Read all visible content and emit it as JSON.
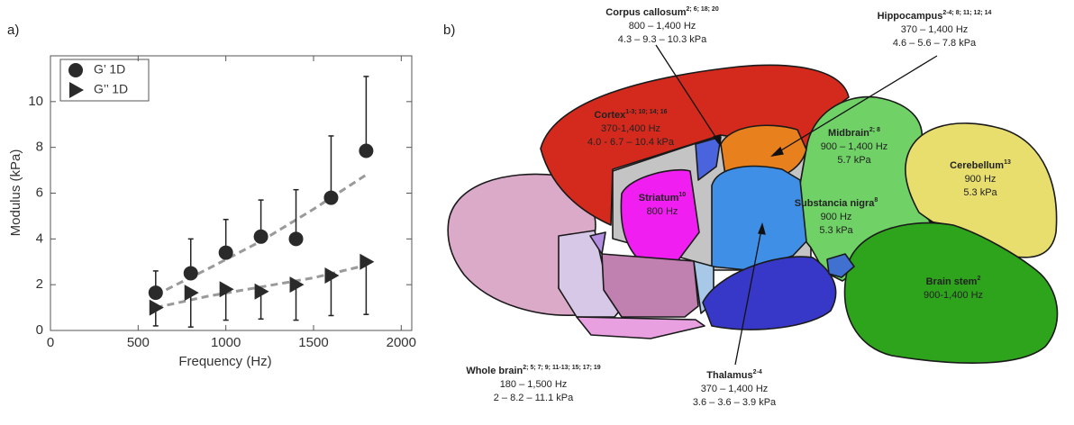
{
  "panel_labels": [
    "a)",
    "b)"
  ],
  "chart_data": {
    "type": "scatter",
    "x_label": "Frequency (Hz)",
    "y_label": "Modulus (kPa)",
    "x": [
      600,
      800,
      1000,
      1200,
      1400,
      1600,
      1800
    ],
    "xlim": [
      0,
      2060
    ],
    "ylim": [
      0,
      12
    ],
    "xticks": [
      0,
      500,
      1000,
      1500,
      2000
    ],
    "yticks": [
      0,
      2,
      4,
      6,
      8,
      10
    ],
    "legend": "upper left",
    "series": [
      {
        "name": "G’ 1D",
        "color": "#2a2a2a",
        "marker": "circle",
        "error_direction": "up",
        "values": [
          1.65,
          2.5,
          3.4,
          4.1,
          4.0,
          5.8,
          7.85
        ],
        "errors": [
          0.95,
          1.5,
          1.45,
          1.6,
          2.15,
          2.7,
          3.25
        ],
        "fit": {
          "color": "#9a9a9a",
          "x": [
            600,
            900,
            1200,
            1500,
            1800
          ],
          "values": [
            1.55,
            2.7,
            3.9,
            5.3,
            6.8
          ]
        }
      },
      {
        "name": "G’’ 1D",
        "color": "#2a2a2a",
        "marker": "triangle-right",
        "error_direction": "down",
        "values": [
          1.0,
          1.65,
          1.8,
          1.7,
          2.0,
          2.4,
          3.0
        ],
        "errors": [
          0.8,
          1.5,
          1.35,
          1.2,
          1.55,
          1.75,
          2.3
        ],
        "fit": {
          "color": "#9a9a9a",
          "x": [
            600,
            900,
            1200,
            1500,
            1800
          ],
          "values": [
            1.0,
            1.5,
            1.9,
            2.3,
            2.85
          ]
        }
      }
    ]
  },
  "diagram": {
    "labels": [
      {
        "name": "Corpus callosum",
        "sup": "2; 6; 18; 20",
        "lines": [
          "800 – 1,400 Hz",
          "4.3 – 9.3 – 10.3 kPa"
        ]
      },
      {
        "name": "Hippocampus",
        "sup": "2-4; 8; 11; 12; 14",
        "lines": [
          "370 – 1,400 Hz",
          "4.6 – 5.6 – 7.8 kPa"
        ]
      },
      {
        "name": "Cortex",
        "sup": "1-3; 10; 14; 16",
        "lines": [
          "370-1,400 Hz",
          "4.0 - 6.7 – 10.4 kPa"
        ]
      },
      {
        "name": "Midbrain",
        "sup": "2; 8",
        "lines": [
          "900 – 1,400 Hz",
          "5.7 kPa"
        ]
      },
      {
        "name": "Cerebellum",
        "sup": "13",
        "lines": [
          "900 Hz",
          "5.3 kPa"
        ]
      },
      {
        "name": "Striatum",
        "sup": "10",
        "lines": [
          "800 Hz"
        ]
      },
      {
        "name": "Substancia nigra",
        "sup": "8",
        "lines": [
          "900 Hz",
          "5.3 kPa"
        ]
      },
      {
        "name": "Brain stem",
        "sup": "2",
        "lines": [
          "900-1,400 Hz"
        ]
      },
      {
        "name": "Whole brain",
        "sup": "2; 5; 7; 9; 11-13; 15; 17; 19",
        "lines": [
          "180 – 1,500 Hz",
          "2 – 8.2 – 11.1 kPa"
        ]
      },
      {
        "name": "Thalamus",
        "sup": "2-4",
        "lines": [
          "370 – 1,400 Hz",
          "3.6 – 3.6 – 3.9 kPa"
        ]
      }
    ]
  }
}
